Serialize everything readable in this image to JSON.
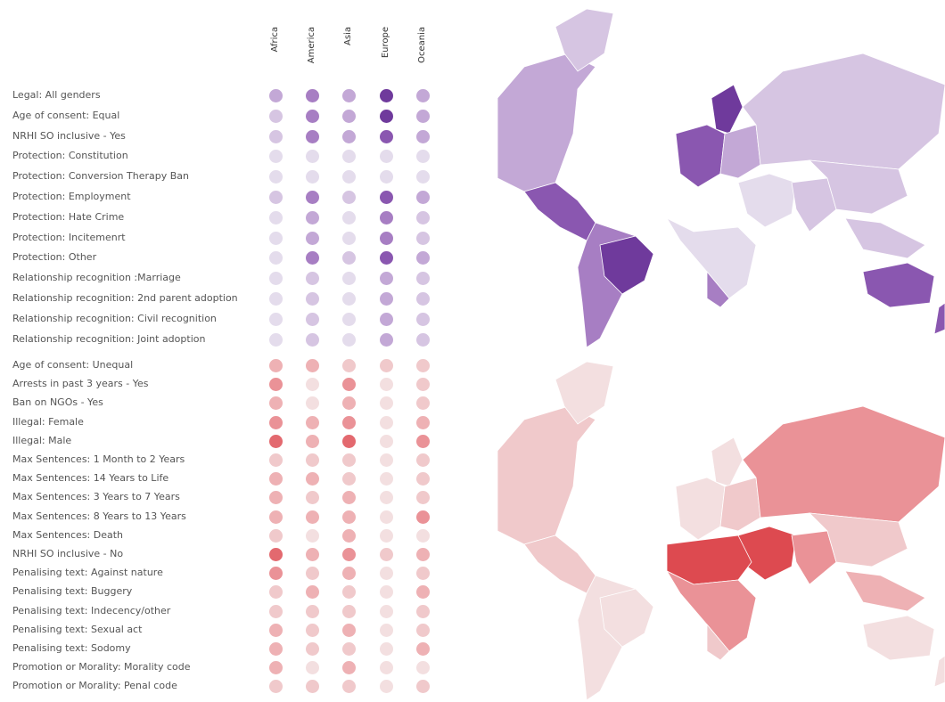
{
  "regions": [
    "Africa",
    "America",
    "Asia",
    "Europe",
    "Oceania"
  ],
  "colors": {
    "legal": [
      "#e4dcec",
      "#d6c5e2",
      "#c3a8d6",
      "#a77ec3",
      "#8a57b0",
      "#6f3a9c"
    ],
    "criminal": [
      "#f3dfe0",
      "#f0c9cb",
      "#eeb1b4",
      "#ea9297",
      "#e3696f",
      "#dd4a50"
    ]
  },
  "legal_rows": [
    {
      "label": "Legal: All genders",
      "levels": [
        2,
        3,
        2,
        5,
        2
      ]
    },
    {
      "label": "Age of consent: Equal",
      "levels": [
        1,
        3,
        2,
        5,
        2
      ]
    },
    {
      "label": "NRHI  SO inclusive - Yes",
      "levels": [
        1,
        3,
        2,
        4,
        2
      ]
    },
    {
      "label": "Protection: Constitution",
      "levels": [
        0,
        0,
        0,
        0,
        0
      ]
    },
    {
      "label": "Protection: Conversion Therapy Ban",
      "levels": [
        0,
        0,
        0,
        0,
        0
      ]
    },
    {
      "label": "Protection: Employment",
      "levels": [
        1,
        3,
        1,
        4,
        2
      ]
    },
    {
      "label": "Protection: Hate Crime",
      "levels": [
        0,
        2,
        0,
        3,
        1
      ]
    },
    {
      "label": "Protection: Incitemenrt",
      "levels": [
        0,
        2,
        0,
        3,
        1
      ]
    },
    {
      "label": "Protection: Other",
      "levels": [
        0,
        3,
        1,
        4,
        2
      ]
    },
    {
      "label": "Relationship recognition :Marriage",
      "levels": [
        0,
        1,
        0,
        2,
        1
      ]
    },
    {
      "label": "Relationship recognition: 2nd parent adoption",
      "levels": [
        0,
        1,
        0,
        2,
        1
      ]
    },
    {
      "label": "Relationship recognition: Civil recognition",
      "levels": [
        0,
        1,
        0,
        2,
        1
      ]
    },
    {
      "label": "Relationship recognition: Joint adoption",
      "levels": [
        0,
        1,
        0,
        2,
        1
      ]
    }
  ],
  "criminal_rows": [
    {
      "label": "Age of consent: Unequal",
      "levels": [
        2,
        2,
        1,
        1,
        1
      ]
    },
    {
      "label": "Arrests in past 3 years - Yes",
      "levels": [
        3,
        0,
        3,
        0,
        1
      ]
    },
    {
      "label": "Ban on NGOs  - Yes",
      "levels": [
        2,
        0,
        2,
        0,
        1
      ]
    },
    {
      "label": "Illegal: Female",
      "levels": [
        3,
        2,
        3,
        0,
        2
      ]
    },
    {
      "label": "Illegal: Male",
      "levels": [
        4,
        2,
        4,
        0,
        3
      ]
    },
    {
      "label": "Max Sentences: 1 Month  to 2 Years",
      "levels": [
        1,
        1,
        1,
        0,
        1
      ]
    },
    {
      "label": "Max Sentences: 14 Years to Life",
      "levels": [
        2,
        2,
        1,
        0,
        1
      ]
    },
    {
      "label": "Max Sentences: 3 Years to 7 Years",
      "levels": [
        2,
        1,
        2,
        0,
        1
      ]
    },
    {
      "label": "Max Sentences: 8 Years to 13 Years",
      "levels": [
        2,
        2,
        2,
        0,
        3
      ]
    },
    {
      "label": "Max Sentences: Death",
      "levels": [
        1,
        0,
        2,
        0,
        0
      ]
    },
    {
      "label": "NRHI  SO inclusive - No",
      "levels": [
        4,
        2,
        3,
        1,
        2
      ]
    },
    {
      "label": "Penalising text: Against nature",
      "levels": [
        3,
        1,
        2,
        0,
        1
      ]
    },
    {
      "label": "Penalising text: Buggery",
      "levels": [
        1,
        2,
        1,
        0,
        2
      ]
    },
    {
      "label": "Penalising text: Indecency/other",
      "levels": [
        1,
        1,
        1,
        0,
        1
      ]
    },
    {
      "label": "Penalising text: Sexual act",
      "levels": [
        2,
        1,
        2,
        0,
        1
      ]
    },
    {
      "label": "Penalising text: Sodomy",
      "levels": [
        2,
        1,
        1,
        0,
        2
      ]
    },
    {
      "label": "Promotion or Morality: Morality code",
      "levels": [
        2,
        0,
        2,
        0,
        0
      ]
    },
    {
      "label": "Promotion or Morality: Penal code",
      "levels": [
        1,
        1,
        1,
        0,
        1
      ]
    }
  ],
  "maps": {
    "legal": {
      "land_color": "#d6c5e2",
      "regions": [
        {
          "name": "North America",
          "level": 2
        },
        {
          "name": "Greenland",
          "level": 1
        },
        {
          "name": "Central America",
          "level": 4
        },
        {
          "name": "South America",
          "level": 3
        },
        {
          "name": "Brazil",
          "level": 5
        },
        {
          "name": "Western Europe",
          "level": 4
        },
        {
          "name": "Scandinavia",
          "level": 5
        },
        {
          "name": "Eastern Europe",
          "level": 2
        },
        {
          "name": "Russia",
          "level": 1
        },
        {
          "name": "Middle East",
          "level": 0
        },
        {
          "name": "Africa",
          "level": 0
        },
        {
          "name": "South Africa",
          "level": 3
        },
        {
          "name": "South Asia",
          "level": 1
        },
        {
          "name": "East Asia",
          "level": 1
        },
        {
          "name": "Southeast Asia",
          "level": 1
        },
        {
          "name": "Australia",
          "level": 4
        },
        {
          "name": "New Zealand",
          "level": 4
        }
      ]
    },
    "criminal": {
      "land_color": "#f0c9cb",
      "regions": [
        {
          "name": "North America",
          "level": 1
        },
        {
          "name": "Greenland",
          "level": 0
        },
        {
          "name": "Central America",
          "level": 1
        },
        {
          "name": "South America",
          "level": 0
        },
        {
          "name": "Brazil",
          "level": 0
        },
        {
          "name": "Western Europe",
          "level": 0
        },
        {
          "name": "Scandinavia",
          "level": 0
        },
        {
          "name": "Eastern Europe",
          "level": 1
        },
        {
          "name": "Russia",
          "level": 3
        },
        {
          "name": "Middle East",
          "level": 5
        },
        {
          "name": "North Africa",
          "level": 5
        },
        {
          "name": "Africa",
          "level": 3
        },
        {
          "name": "South Africa",
          "level": 1
        },
        {
          "name": "South Asia",
          "level": 3
        },
        {
          "name": "East Asia",
          "level": 1
        },
        {
          "name": "Southeast Asia",
          "level": 2
        },
        {
          "name": "Australia",
          "level": 0
        },
        {
          "name": "New Zealand",
          "level": 0
        }
      ]
    }
  }
}
